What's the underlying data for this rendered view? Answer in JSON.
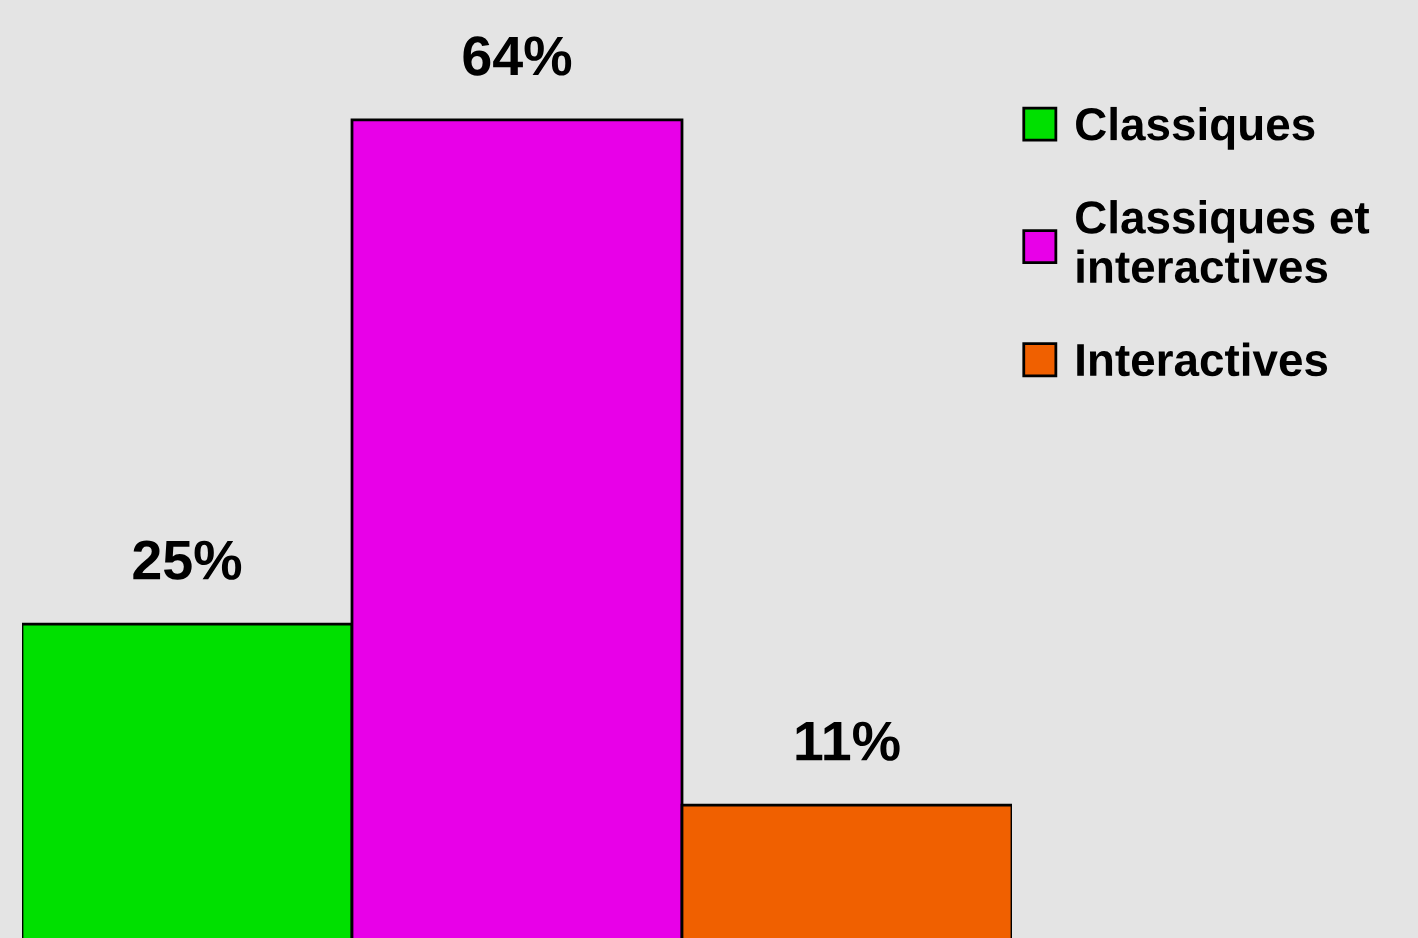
{
  "chart_data": {
    "type": "bar",
    "categories": [
      null
    ],
    "series": [
      {
        "name": "Classiques",
        "color": "#00e000",
        "values": [
          25
        ],
        "value_labels": [
          "25%"
        ]
      },
      {
        "name": "Classiques et\ninteractives",
        "color": "#e800e8",
        "values": [
          64
        ],
        "value_labels": [
          "64%"
        ]
      },
      {
        "name": "Interactives",
        "color": "#f06000",
        "values": [
          11
        ],
        "value_labels": [
          "11%"
        ]
      }
    ],
    "legend": "top right"
  }
}
